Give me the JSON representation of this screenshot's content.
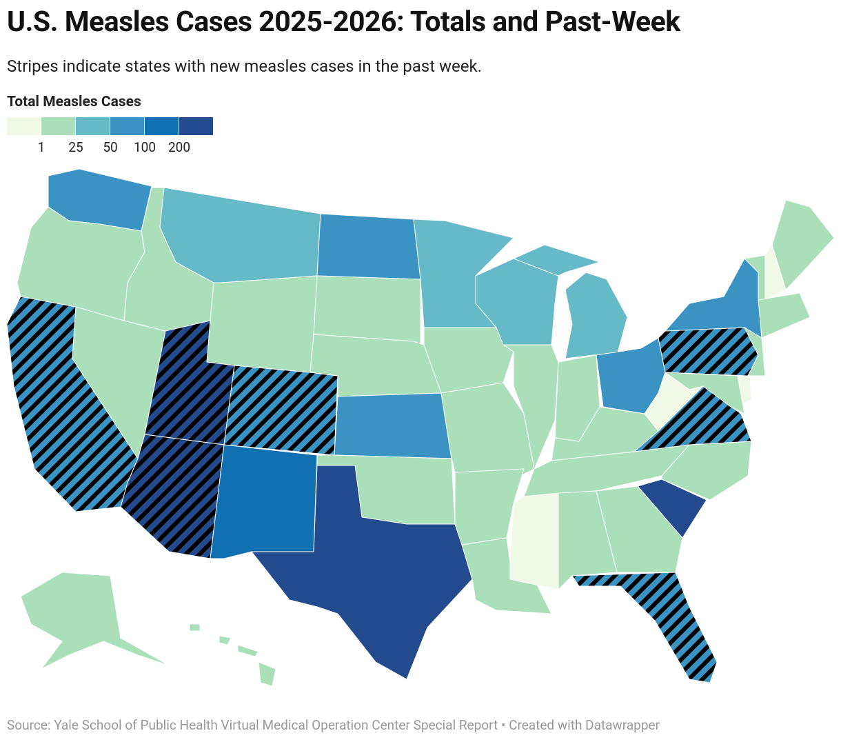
{
  "title": "U.S. Measles Cases 2025-2026: Totals and Past-Week",
  "subtitle": "Stripes indicate states with new measles cases in the past week.",
  "legend": {
    "title": "Total Measles Cases",
    "colors": [
      "#f0f9e8",
      "#aadfba",
      "#66b9c6",
      "#3a93c3",
      "#1170b1",
      "#234a8c"
    ],
    "ticks": [
      1,
      25,
      50,
      100,
      200
    ]
  },
  "state_fills": {
    "WA": "#3a93c3",
    "OR": "#aadfba",
    "CA": "#3a93c3",
    "NV": "#aadfba",
    "ID": "#aadfba",
    "MT": "#66b9c6",
    "WY": "#aadfba",
    "UT": "#234a8c",
    "CO": "#3a93c3",
    "AZ": "#234a8c",
    "NM": "#1170b1",
    "ND": "#3a93c3",
    "SD": "#aadfba",
    "NE": "#aadfba",
    "KS": "#3a93c3",
    "OK": "#aadfba",
    "TX": "#234a8c",
    "MN": "#66b9c6",
    "IA": "#aadfba",
    "MO": "#aadfba",
    "AR": "#aadfba",
    "LA": "#aadfba",
    "WI": "#66b9c6",
    "IL": "#aadfba",
    "MI": "#66b9c6",
    "IN": "#aadfba",
    "OH": "#3a93c3",
    "KY": "#aadfba",
    "TN": "#aadfba",
    "MS": "#f0f9e8",
    "AL": "#aadfba",
    "GA": "#aadfba",
    "FL": "#3a93c3",
    "SC": "#234a8c",
    "NC": "#aadfba",
    "VA": "#3a93c3",
    "WV": "#f0f9e8",
    "PA": "#3a93c3",
    "NY": "#3a93c3",
    "NJ": "#aadfba",
    "MD": "#aadfba",
    "DE": "#f0f9e8",
    "VT": "#aadfba",
    "NH": "#f0f9e8",
    "ME": "#aadfba",
    "MA": "#aadfba",
    "AK": "#aadfba",
    "HI": "#aadfba"
  },
  "past_week_new_cases": [
    "CA",
    "UT",
    "AZ",
    "CO",
    "FL",
    "VA",
    "PA"
  ],
  "source": "Source: Yale School of Public Health Virtual Medical Operation Center Special Report • Created with Datawrapper"
}
